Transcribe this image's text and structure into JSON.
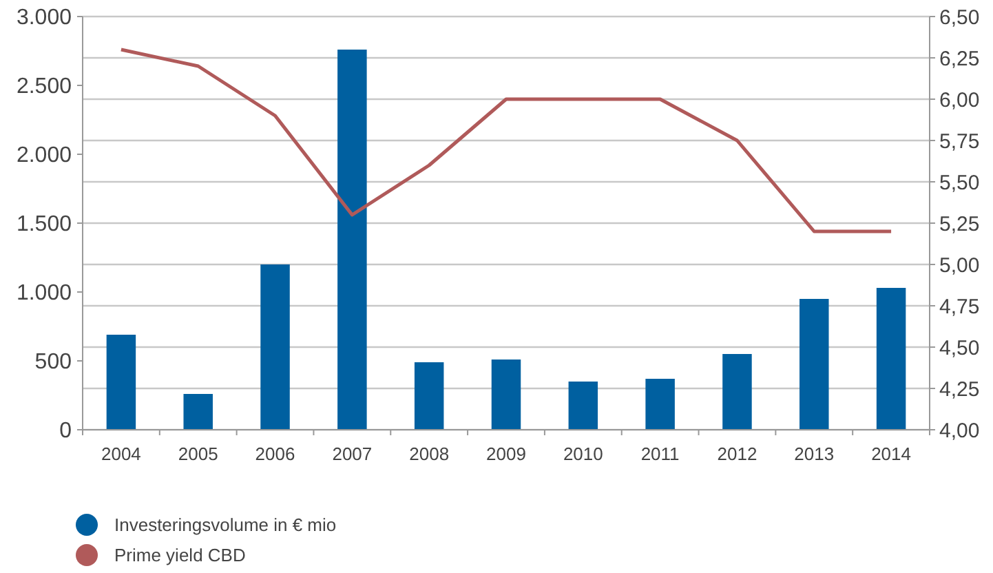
{
  "chart_data": {
    "type": "bar",
    "categories": [
      "2004",
      "2005",
      "2006",
      "2007",
      "2008",
      "2009",
      "2010",
      "2011",
      "2012",
      "2013",
      "2014"
    ],
    "series": [
      {
        "name": "Investeringsvolume in € mio",
        "color": "#0060a0",
        "values": [
          690,
          260,
          1200,
          2760,
          490,
          510,
          350,
          370,
          550,
          950,
          1030
        ]
      },
      {
        "name": "Prime yield CBD",
        "type": "line",
        "axis": "y2",
        "color": "#b05a5a",
        "values": [
          6.3,
          6.2,
          5.9,
          5.3,
          5.6,
          6.0,
          6.0,
          6.0,
          5.75,
          5.2,
          5.2
        ]
      }
    ],
    "ylim": [
      0,
      3000
    ],
    "yticks": [
      {
        "value": 0,
        "label": "0"
      },
      {
        "value": 500,
        "label": "500"
      },
      {
        "value": 1000,
        "label": "1.000"
      },
      {
        "value": 1500,
        "label": "1.500"
      },
      {
        "value": 2000,
        "label": "2.000"
      },
      {
        "value": 2500,
        "label": "2.500"
      },
      {
        "value": 3000,
        "label": "3.000"
      }
    ],
    "y2lim": [
      4,
      6.5
    ],
    "y2ticks": [
      {
        "value": 4,
        "label": "4,00"
      },
      {
        "value": 4.25,
        "label": "4,25"
      },
      {
        "value": 4.5,
        "label": "4,50"
      },
      {
        "value": 4.75,
        "label": "4,75"
      },
      {
        "value": 5,
        "label": "5,00"
      },
      {
        "value": 5.25,
        "label": "5,25"
      },
      {
        "value": 5.5,
        "label": "5,50"
      },
      {
        "value": 5.75,
        "label": "5,75"
      },
      {
        "value": 6,
        "label": "6,00"
      },
      {
        "value": 6.25,
        "label": "6,25"
      },
      {
        "value": 6.5,
        "label": "6,50"
      }
    ],
    "grid": "y2",
    "legend": "bottom left",
    "marker": "none",
    "line_style": "solid"
  }
}
